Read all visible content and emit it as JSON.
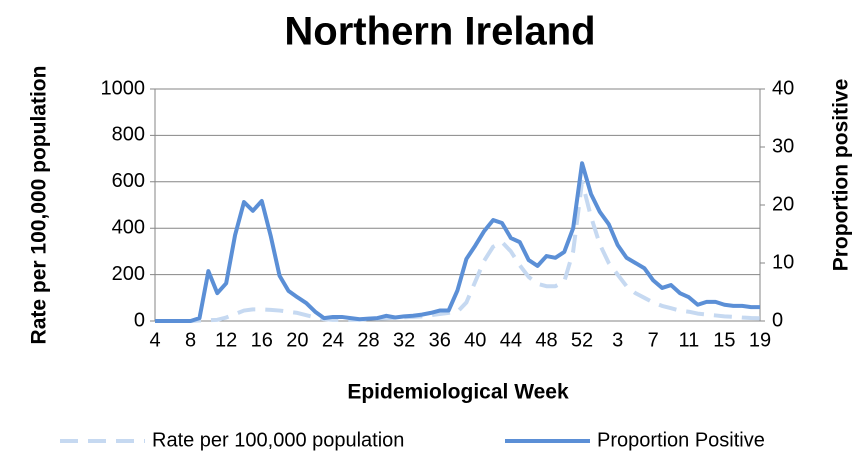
{
  "chart_data": {
    "type": "line",
    "title": "Northern Ireland",
    "x_label": "Epidemiological Week",
    "y_label": "Rate per 100,000 population",
    "y2_label": "Proportion positive",
    "categories": [
      "4",
      null,
      null,
      null,
      "8",
      null,
      null,
      null,
      "12",
      null,
      null,
      null,
      "16",
      null,
      null,
      null,
      "20",
      null,
      null,
      null,
      "24",
      null,
      null,
      null,
      "28",
      null,
      null,
      null,
      "32",
      null,
      null,
      null,
      "36",
      null,
      null,
      null,
      "40",
      null,
      null,
      null,
      "44",
      null,
      null,
      null,
      "48",
      null,
      null,
      null,
      "52",
      null,
      null,
      null,
      "3",
      null,
      null,
      null,
      "7",
      null,
      null,
      null,
      "11",
      null,
      null,
      null,
      "15",
      null,
      null,
      null,
      "19"
    ],
    "series": [
      {
        "name": "Rate per 100,000 population",
        "color": "#c6d9f1",
        "dashed": true,
        "values": [
          0,
          0,
          0,
          0,
          0,
          2,
          3,
          5,
          15,
          30,
          45,
          50,
          50,
          48,
          45,
          40,
          35,
          25,
          15,
          8,
          5,
          5,
          5,
          6,
          8,
          10,
          12,
          14,
          16,
          18,
          20,
          25,
          30,
          35,
          40,
          80,
          170,
          260,
          320,
          340,
          300,
          240,
          190,
          160,
          150,
          150,
          170,
          300,
          600,
          450,
          330,
          250,
          200,
          150,
          120,
          100,
          80,
          65,
          55,
          45,
          40,
          32,
          28,
          24,
          20,
          18,
          15,
          13,
          12
        ]
      },
      {
        "name": "Proportion Positive",
        "color": "#5b8fd6",
        "axis": "y2",
        "values": [
          0,
          0,
          0,
          0,
          0,
          0.5,
          8.6,
          4.8,
          6.5,
          14.8,
          20.5,
          19,
          20.7,
          14.7,
          7.8,
          5.2,
          4.1,
          3.1,
          1.6,
          0.5,
          0.7,
          0.7,
          0.5,
          0.3,
          0.4,
          0.5,
          0.9,
          0.6,
          0.8,
          0.9,
          1.1,
          1.4,
          1.8,
          1.8,
          5.3,
          10.7,
          13,
          15.5,
          17.4,
          16.9,
          14.3,
          13.6,
          10.5,
          9.5,
          11.2,
          10.9,
          11.9,
          16,
          27.2,
          21.9,
          18.8,
          16.7,
          13.1,
          10.9,
          10,
          9.1,
          7,
          5.7,
          6.2,
          4.8,
          4.1,
          2.8,
          3.3,
          3.3,
          2.8,
          2.6,
          2.6,
          2.4,
          2.4
        ]
      }
    ],
    "ylim": [
      0,
      1000
    ],
    "yticks": [
      0,
      200,
      400,
      600,
      800,
      1000
    ],
    "y2lim": [
      0,
      40
    ],
    "y2ticks": [
      0,
      10,
      20,
      30,
      40
    ],
    "grid": true,
    "legend": "bottom"
  }
}
